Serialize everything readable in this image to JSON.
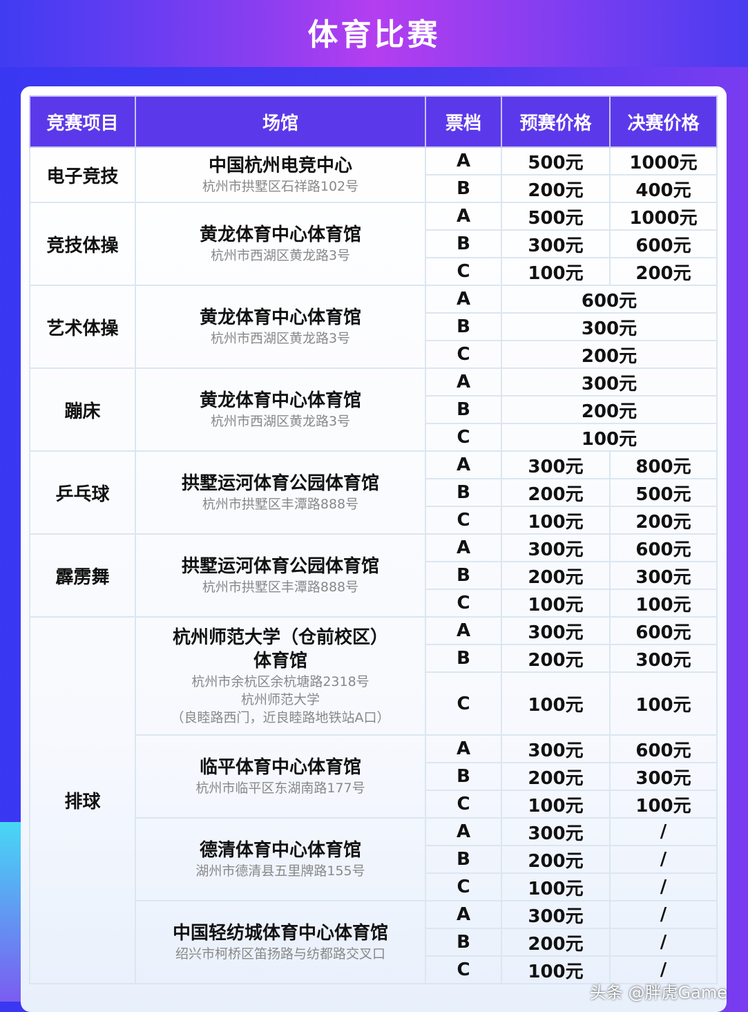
{
  "title": "体育比赛",
  "headers": [
    "竞赛项目",
    "场馆",
    "票档",
    "预赛价格",
    "决赛价格"
  ],
  "events": [
    {
      "name": "电子竞技",
      "venues": [
        {
          "name": [
            "中国杭州电竞中心"
          ],
          "address": [
            "杭州市拱墅区石祥路102号"
          ],
          "tiers": [
            [
              "A",
              "500元",
              "1000元"
            ],
            [
              "B",
              "200元",
              "400元"
            ]
          ]
        }
      ]
    },
    {
      "name": "竞技体操",
      "venues": [
        {
          "name": [
            "黄龙体育中心体育馆"
          ],
          "address": [
            "杭州市西湖区黄龙路3号"
          ],
          "tiers": [
            [
              "A",
              "500元",
              "1000元"
            ],
            [
              "B",
              "300元",
              "600元"
            ],
            [
              "C",
              "100元",
              "200元"
            ]
          ]
        }
      ]
    },
    {
      "name": "艺术体操",
      "venues": [
        {
          "name": [
            "黄龙体育中心体育馆"
          ],
          "address": [
            "杭州市西湖区黄龙路3号"
          ],
          "tiers": [
            [
              "A",
              "600元"
            ],
            [
              "B",
              "300元"
            ],
            [
              "C",
              "200元"
            ]
          ]
        }
      ]
    },
    {
      "name": "蹦床",
      "venues": [
        {
          "name": [
            "黄龙体育中心体育馆"
          ],
          "address": [
            "杭州市西湖区黄龙路3号"
          ],
          "tiers": [
            [
              "A",
              "300元"
            ],
            [
              "B",
              "200元"
            ],
            [
              "C",
              "100元"
            ]
          ]
        }
      ]
    },
    {
      "name": "乒乓球",
      "venues": [
        {
          "name": [
            "拱墅运河体育公园体育馆"
          ],
          "address": [
            "杭州市拱墅区丰潭路888号"
          ],
          "tiers": [
            [
              "A",
              "300元",
              "800元"
            ],
            [
              "B",
              "200元",
              "500元"
            ],
            [
              "C",
              "100元",
              "200元"
            ]
          ]
        }
      ]
    },
    {
      "name": "霹雳舞",
      "venues": [
        {
          "name": [
            "拱墅运河体育公园体育馆"
          ],
          "address": [
            "杭州市拱墅区丰潭路888号"
          ],
          "tiers": [
            [
              "A",
              "300元",
              "600元"
            ],
            [
              "B",
              "200元",
              "300元"
            ],
            [
              "C",
              "100元",
              "100元"
            ]
          ]
        }
      ]
    },
    {
      "name": "排球",
      "venues": [
        {
          "name": [
            "杭州师范大学（仓前校区）",
            "体育馆"
          ],
          "address": [
            "杭州市余杭区余杭塘路2318号",
            "杭州师范大学",
            "（良睦路西门，近良睦路地铁站A口）"
          ],
          "tiers": [
            [
              "A",
              "300元",
              "600元"
            ],
            [
              "B",
              "200元",
              "300元"
            ],
            [
              "C",
              "100元",
              "100元"
            ]
          ]
        },
        {
          "name": [
            "临平体育中心体育馆"
          ],
          "address": [
            "杭州市临平区东湖南路177号"
          ],
          "tiers": [
            [
              "A",
              "300元",
              "600元"
            ],
            [
              "B",
              "200元",
              "300元"
            ],
            [
              "C",
              "100元",
              "100元"
            ]
          ]
        },
        {
          "name": [
            "德清体育中心体育馆"
          ],
          "address": [
            "湖州市德清县五里牌路155号"
          ],
          "tiers": [
            [
              "A",
              "300元",
              "/"
            ],
            [
              "B",
              "200元",
              "/"
            ],
            [
              "C",
              "100元",
              "/"
            ]
          ]
        },
        {
          "name": [
            "中国轻纺城体育中心体育馆"
          ],
          "address": [
            "绍兴市柯桥区笛扬路与纺都路交叉口"
          ],
          "tiers": [
            [
              "A",
              "300元",
              "/"
            ],
            [
              "B",
              "200元",
              "/"
            ],
            [
              "C",
              "100元",
              "/"
            ]
          ]
        }
      ]
    }
  ],
  "watermark": "头条 @胖虎Game",
  "colors": {
    "header": "#5b39ea",
    "background": "#3a37f2"
  }
}
